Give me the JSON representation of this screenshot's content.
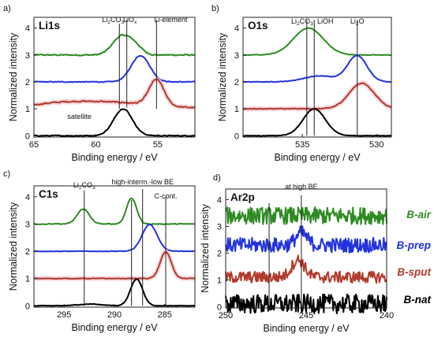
{
  "chart_data": [
    {
      "panel": "a)",
      "title": "Li1s",
      "type": "line",
      "xlabel": "Binding energy / eV",
      "ylabel": "Normalized intensity",
      "xlim": [
        65,
        52
      ],
      "ylim": [
        -0.05,
        4.4
      ],
      "xticks": [
        65,
        60,
        55
      ],
      "yticks": [
        0,
        1,
        2,
        3,
        4
      ],
      "annotations": [
        {
          "text": "Li",
          "sub": "2",
          "text2": "CO",
          "sub2": "3",
          "x": 58.1
        },
        {
          "text": "LiO",
          "sub": "x",
          "x": 57.5
        },
        {
          "text": "Li-element",
          "x": 55.1
        },
        {
          "text": "satellite"
        }
      ],
      "series": [
        {
          "color": "#2e8b22",
          "offset": 3.0,
          "peaks": [
            [
              58.0,
              0.65,
              0.7
            ],
            [
              56.9,
              0.35,
              0.6
            ]
          ],
          "noise": 0.02
        },
        {
          "color": "#2233dd",
          "offset": 2.0,
          "peaks": [
            [
              56.4,
              0.98,
              0.75
            ]
          ],
          "noise": 0.012
        },
        {
          "color": "#b23a2a",
          "offset": 1.0,
          "peaks": [
            [
              55.1,
              0.95,
              0.6
            ],
            [
              58.5,
              0.22,
              3.5
            ],
            [
              63.0,
              0.15,
              2.5
            ]
          ],
          "noise": 0.02
        },
        {
          "color": "#000000",
          "offset": 0.0,
          "peaks": [
            [
              57.8,
              1.0,
              0.75
            ]
          ],
          "noise": 0.012
        }
      ]
    },
    {
      "panel": "b)",
      "title": "O1s",
      "type": "line",
      "xlabel": "Binding energy / eV",
      "ylabel": "Normalized intensity",
      "xlim": [
        539,
        529
      ],
      "ylim": [
        -0.05,
        4.4
      ],
      "xticks": [
        535,
        530
      ],
      "yticks": [
        0,
        1,
        2,
        3,
        4
      ],
      "annotations": [
        {
          "text": "Li",
          "sub": "2",
          "text2": "CO",
          "sub2": "3",
          "x": 534.7
        },
        {
          "text": "LiOH",
          "x": 534.2
        },
        {
          "text": "Li",
          "sub": "2",
          "text2": "O",
          "x": 531.3
        }
      ],
      "series": [
        {
          "color": "#2e8b22",
          "offset": 3.0,
          "peaks": [
            [
              534.6,
              1.0,
              1.0
            ]
          ],
          "noise": 0.008
        },
        {
          "color": "#2233dd",
          "offset": 2.0,
          "peaks": [
            [
              531.3,
              0.97,
              0.65
            ],
            [
              533.8,
              0.22,
              1.1
            ]
          ],
          "noise": 0.008
        },
        {
          "color": "#b23a2a",
          "offset": 1.0,
          "peaks": [
            [
              531.0,
              0.95,
              0.85
            ]
          ],
          "noise": 0.012
        },
        {
          "color": "#000000",
          "offset": 0.0,
          "peaks": [
            [
              534.2,
              1.0,
              0.75
            ]
          ],
          "noise": 0.006
        }
      ]
    },
    {
      "panel": "c)",
      "title": "C1s",
      "type": "line",
      "xlabel": "Binding energy / eV",
      "ylabel": "Normalized intensity",
      "xlim": [
        298,
        282
      ],
      "ylim": [
        -0.05,
        4.4
      ],
      "xticks": [
        295,
        290,
        285
      ],
      "yticks": [
        0,
        1,
        2,
        3,
        4
      ],
      "annotations": [
        {
          "text": "Li",
          "sub": "2",
          "text2": "CO",
          "sub2": "3",
          "x": 293.0
        },
        {
          "text": "high-interm.-low BE",
          "x": 287.2
        },
        {
          "text": "C-cont.",
          "x": 284.9
        }
      ],
      "series": [
        {
          "color": "#2e8b22",
          "offset": 3.0,
          "peaks": [
            [
              293.1,
              0.55,
              0.6
            ],
            [
              288.3,
              0.95,
              0.5
            ]
          ],
          "noise": 0.012
        },
        {
          "color": "#2233dd",
          "offset": 2.0,
          "peaks": [
            [
              286.5,
              0.98,
              0.75
            ]
          ],
          "noise": 0.008
        },
        {
          "color": "#b23a2a",
          "offset": 1.0,
          "peaks": [
            [
              284.9,
              0.98,
              0.55
            ]
          ],
          "noise": 0.01
        },
        {
          "color": "#000000",
          "offset": 0.0,
          "peaks": [
            [
              287.8,
              0.98,
              0.6
            ],
            [
              292.5,
              0.06,
              1.2
            ]
          ],
          "noise": 0.008
        }
      ]
    },
    {
      "panel": "d)",
      "title": "Ar2p",
      "type": "line",
      "xlabel": "Binding energy / eV",
      "ylabel": "Normalized intensity",
      "xlim": [
        250,
        240
      ],
      "ylim": [
        -0.05,
        4.4
      ],
      "xticks": [
        250,
        245,
        240
      ],
      "yticks": [
        0,
        1,
        2,
        3,
        4
      ],
      "annotations": [
        {
          "text": "at high BE",
          "x": 245.3
        }
      ],
      "series": [
        {
          "color": "#2e8b22",
          "name": "B-air",
          "offset": 3.4,
          "peaks": [],
          "noise": 0.32
        },
        {
          "color": "#2233dd",
          "name": "B-prep",
          "offset": 2.3,
          "peaks": [
            [
              245.3,
              0.45,
              0.35
            ]
          ],
          "noise": 0.28
        },
        {
          "color": "#b23a2a",
          "name": "B-sput",
          "offset": 1.1,
          "peaks": [
            [
              245.5,
              0.65,
              0.4
            ]
          ],
          "noise": 0.22
        },
        {
          "color": "#000000",
          "name": "B-nat",
          "offset": 0.1,
          "peaks": [],
          "noise": 0.36
        }
      ]
    }
  ]
}
